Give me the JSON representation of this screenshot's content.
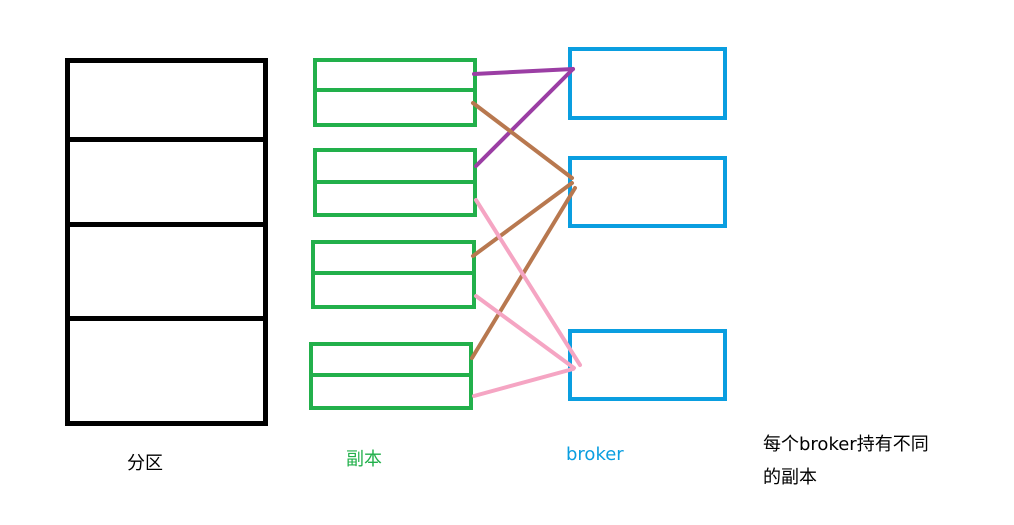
{
  "colors": {
    "partition": "#000000",
    "replica": "#22b04b",
    "broker": "#0a9ee0",
    "purple": "#9b3ea4",
    "brown": "#b8784f",
    "pink": "#f5a5c3",
    "text": "#000000"
  },
  "labels": {
    "partition": "分区",
    "replica": "副本",
    "broker": "broker"
  },
  "note": {
    "line1": "每个broker持有不同",
    "line2": "的副本"
  }
}
